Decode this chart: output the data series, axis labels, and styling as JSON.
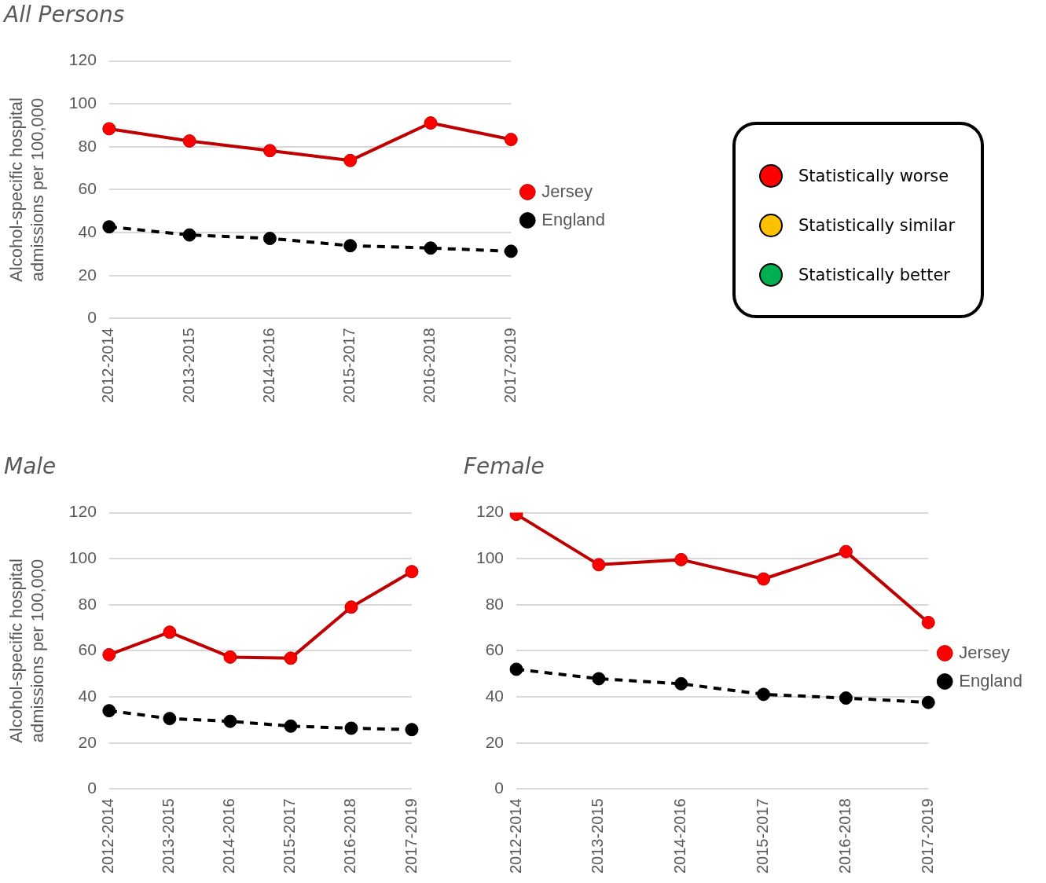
{
  "chart_data": [
    {
      "type": "line",
      "title": "All Persons",
      "ylabel": "Alcohol-specific hospital admissions per 100,000",
      "categories": [
        "2012-2014",
        "2013-2015",
        "2014-2016",
        "2015-2017",
        "2016-2018",
        "2017-2019"
      ],
      "series": [
        {
          "name": "Jersey",
          "color": "#c00000",
          "values": [
            88.4,
            82.7,
            78.2,
            73.6,
            91.1,
            83.4
          ],
          "line_style": "solid"
        },
        {
          "name": "England",
          "color": "#000000",
          "values": [
            42.7,
            38.9,
            37.3,
            33.9,
            32.8,
            31.3
          ],
          "line_style": "dashed"
        }
      ],
      "ylim": [
        0,
        120
      ],
      "yticks": [
        0,
        20,
        40,
        60,
        80,
        100,
        120
      ],
      "grid": "y",
      "legend": "right",
      "marker": "circle"
    },
    {
      "type": "line",
      "title": "Male",
      "ylabel": "Alcohol-specific hospital admissions per 100,000",
      "categories": [
        "2012-2014",
        "2013-2015",
        "2014-2016",
        "2015-2017",
        "2016-2018",
        "2017-2019"
      ],
      "series": [
        {
          "color": "#c00000",
          "values": [
            58.3,
            68.1,
            57.3,
            56.8,
            79.0,
            94.4
          ],
          "line_style": "solid"
        },
        {
          "color": "#000000",
          "values": [
            34.0,
            30.6,
            29.4,
            27.3,
            26.4,
            25.8
          ],
          "line_style": "dashed"
        }
      ],
      "ylim": [
        0,
        120
      ],
      "yticks": [
        0,
        20,
        40,
        60,
        80,
        100,
        120
      ],
      "grid": "y",
      "legend": false,
      "marker": "circle"
    },
    {
      "type": "line",
      "title": "Female",
      "categories": [
        "2012-2014",
        "2013-2015",
        "2014-2016",
        "2015-2017",
        "2016-2018",
        "2017-2019"
      ],
      "series": [
        {
          "name": "Jersey",
          "color": "#c00000",
          "values": [
            119.3,
            97.4,
            99.6,
            91.2,
            103.1,
            72.3
          ],
          "line_style": "solid"
        },
        {
          "name": "England",
          "color": "#000000",
          "values": [
            52.0,
            47.9,
            45.7,
            41.1,
            39.5,
            37.6
          ],
          "line_style": "dashed"
        }
      ],
      "ylim": [
        0,
        120
      ],
      "yticks": [
        0,
        20,
        40,
        60,
        80,
        100,
        120
      ],
      "grid": "y",
      "legend": "right",
      "marker": "circle"
    },
    {
      "type": "other",
      "annotations": [
        "Statistically worse",
        "Statistically similar",
        "Statistically better"
      ]
    }
  ]
}
